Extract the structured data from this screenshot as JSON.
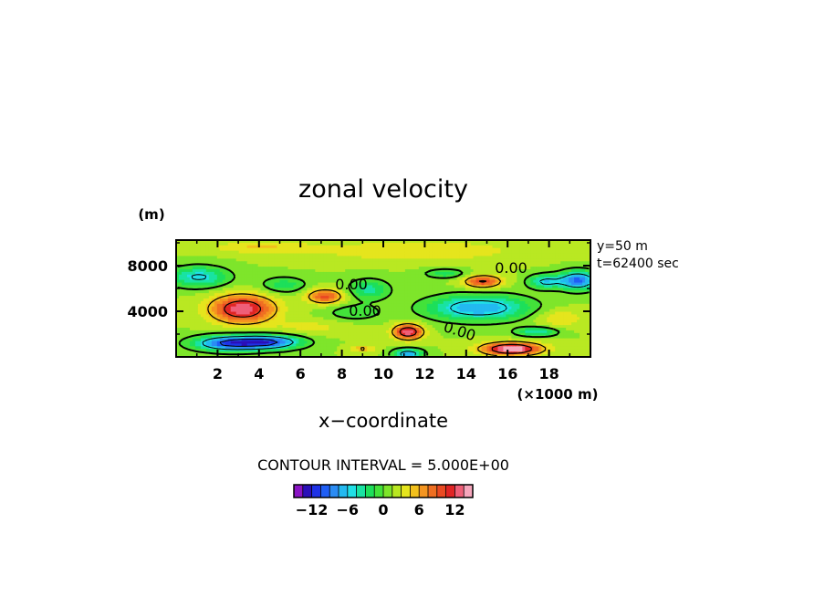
{
  "chart_data": {
    "type": "heatmap",
    "title": "zonal velocity",
    "xlabel": "x−coordinate",
    "ylabel": "(m)",
    "x_unit_label": "(×1000 m)",
    "xlim": [
      0,
      20
    ],
    "ylim": [
      0,
      10240
    ],
    "x_ticks": [
      2,
      4,
      6,
      8,
      10,
      12,
      14,
      16,
      18
    ],
    "x_tick_labels": [
      "2",
      "4",
      "6",
      "8",
      "10",
      "12",
      "14",
      "16",
      "18"
    ],
    "y_ticks": [
      4000,
      8000
    ],
    "y_tick_labels": [
      "4000",
      "8000"
    ],
    "info": [
      "y=50 m",
      "t=62400 sec"
    ],
    "contour_interval_label": "CONTOUR INTERVAL = 5.000E+00",
    "contour_labels": [
      "0.00",
      "0.00",
      "0.00",
      "0.00"
    ],
    "colorbar": {
      "min": -15,
      "max": 15,
      "tick_values": [
        -12,
        -6,
        0,
        6,
        12
      ],
      "tick_labels": [
        "−12",
        "−6",
        "0",
        "6",
        "12"
      ],
      "colors": [
        "#8a14c4",
        "#2a0fb8",
        "#1e32e6",
        "#1f5ef5",
        "#2b8cf4",
        "#23b9f0",
        "#20e0e6",
        "#19e3a2",
        "#1ddf5a",
        "#43e23a",
        "#7ee52b",
        "#b9e822",
        "#e5e51d",
        "#f2c01c",
        "#f59520",
        "#ef6f22",
        "#ea4a22",
        "#e02424",
        "#ef5f78",
        "#f6a6bc"
      ]
    },
    "features": [
      {
        "x": 2.6,
        "y": 1200,
        "sx": 1.7,
        "sy": 650,
        "value": -12
      },
      {
        "x": 4.6,
        "y": 1300,
        "sx": 1.5,
        "sy": 600,
        "value": -10
      },
      {
        "x": 11.2,
        "y": 250,
        "sx": 0.7,
        "sy": 450,
        "value": -9
      },
      {
        "x": 3.2,
        "y": 4200,
        "sx": 1.5,
        "sy": 1200,
        "value": 12
      },
      {
        "x": 7.2,
        "y": 5300,
        "sx": 0.9,
        "sy": 650,
        "value": 8
      },
      {
        "x": 11.2,
        "y": 2200,
        "sx": 0.7,
        "sy": 650,
        "value": 12
      },
      {
        "x": 16.2,
        "y": 700,
        "sx": 1.4,
        "sy": 550,
        "value": 14
      },
      {
        "x": 14.8,
        "y": 6600,
        "sx": 0.9,
        "sy": 550,
        "value": 9
      },
      {
        "x": 14.6,
        "y": 4300,
        "sx": 2.4,
        "sy": 1100,
        "value": -9
      },
      {
        "x": 19.4,
        "y": 6700,
        "sx": 0.9,
        "sy": 800,
        "value": -11
      },
      {
        "x": 17.8,
        "y": 6600,
        "sx": 0.8,
        "sy": 600,
        "value": -7
      },
      {
        "x": 1.1,
        "y": 7000,
        "sx": 1.4,
        "sy": 900,
        "value": -7
      },
      {
        "x": 5.2,
        "y": 6300,
        "sx": 1.1,
        "sy": 700,
        "value": -4
      },
      {
        "x": 9.3,
        "y": 5900,
        "sx": 1.0,
        "sy": 900,
        "value": -5
      },
      {
        "x": 13.0,
        "y": 7300,
        "sx": 1.0,
        "sy": 400,
        "value": -4
      },
      {
        "x": 8.6,
        "y": 3900,
        "sx": 1.3,
        "sy": 700,
        "value": -3
      },
      {
        "x": 17.4,
        "y": 2200,
        "sx": 1.0,
        "sy": 400,
        "value": -6
      },
      {
        "x": 11.6,
        "y": 9300,
        "sx": 5.0,
        "sy": 900,
        "value": 3
      },
      {
        "x": 4.0,
        "y": 9600,
        "sx": 2.4,
        "sy": 500,
        "value": 3
      },
      {
        "x": 18.5,
        "y": 3400,
        "sx": 1.2,
        "sy": 800,
        "value": 3
      },
      {
        "x": 6.5,
        "y": 2600,
        "sx": 1.8,
        "sy": 650,
        "value": 2
      },
      {
        "x": 9.0,
        "y": 700,
        "sx": 0.6,
        "sy": 350,
        "value": 4
      }
    ]
  }
}
